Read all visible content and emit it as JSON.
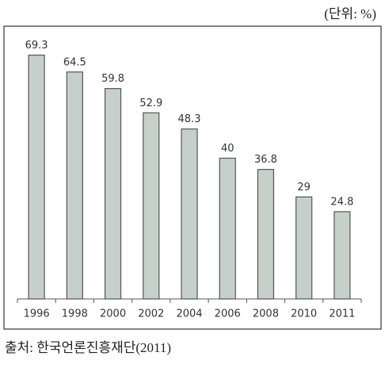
{
  "chart_data": {
    "type": "bar",
    "unit_label": "(단위: %)",
    "categories": [
      "1996",
      "1998",
      "2000",
      "2002",
      "2004",
      "2006",
      "2008",
      "2010",
      "2011"
    ],
    "values": [
      69.3,
      64.5,
      59.8,
      52.9,
      48.3,
      40,
      36.8,
      29,
      24.8
    ],
    "color": "#c5d0ca",
    "ylim": [
      0,
      80
    ],
    "source": "출처: 한국언론진흥재단(2011)"
  }
}
